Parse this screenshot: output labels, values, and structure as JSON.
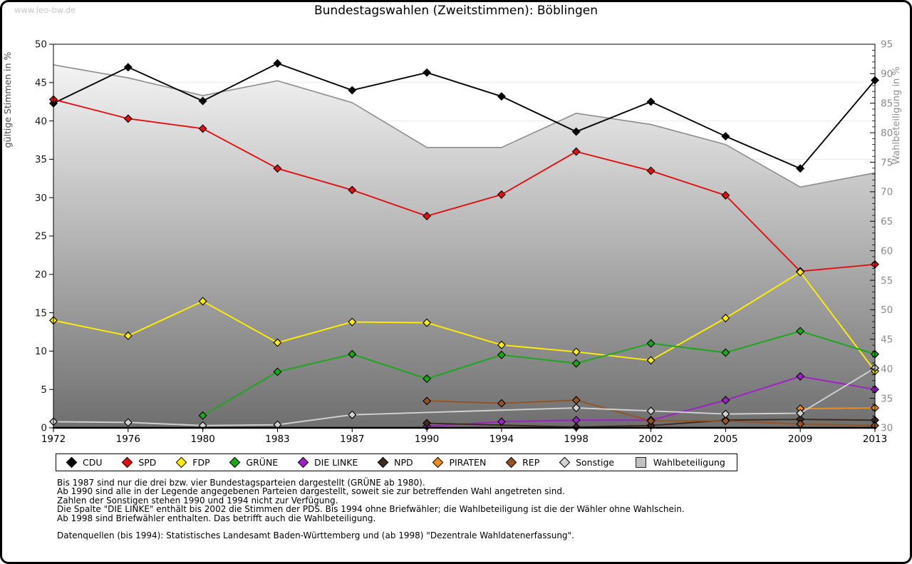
{
  "page": {
    "watermark": "www.leo-bw.de",
    "title": "Bundestagswahlen (Zweitstimmen): Böblingen"
  },
  "footnotes": [
    "Bis 1987 sind nur die drei bzw. vier Bundestagsparteien dargestellt (GRÜNE ab 1980).",
    "Ab 1990 sind alle in der Legende angegebenen Parteien dargestellt, soweit sie zur betreffenden Wahl angetreten sind.",
    "Zahlen der Sonstigen stehen 1990 und 1994 nicht zur Verfügung.",
    "Die Spalte \"DIE LINKE\" enthält bis 2002 die Stimmen der PDS. Bis 1994 ohne Briefwähler; die Wahlbeteiligung ist die der Wähler ohne Wahlschein.",
    "Ab 1998 sind Briefwähler enthalten. Das betrifft auch die Wahlbeteiligung.",
    "",
    "Datenquellen (bis 1994): Statistisches Landesamt Baden-Württemberg und (ab 1998) \"Dezentrale Wahldatenerfassung\"."
  ],
  "chart_data": {
    "type": "line",
    "title": "Bundestagswahlen (Zweitstimmen): Böblingen",
    "categories": [
      "1972",
      "1976",
      "1980",
      "1983",
      "1987",
      "1990",
      "1994",
      "1998",
      "2002",
      "2005",
      "2009",
      "2013"
    ],
    "left_axis": {
      "label": "gültige Stimmen in %",
      "min": 0,
      "max": 50,
      "step": 5
    },
    "right_axis": {
      "label": "Wahlbeteiligung in %",
      "min": 30,
      "max": 95,
      "step": 5,
      "minor_step": 1
    },
    "grid": true,
    "legend_position": "bottom",
    "series": [
      {
        "id": "cdu",
        "name": "CDU",
        "type": "line",
        "axis": "left",
        "color": "#000000",
        "values": [
          42.3,
          47.0,
          42.6,
          47.5,
          44.0,
          46.3,
          43.2,
          38.6,
          42.5,
          38.0,
          33.8,
          45.3
        ]
      },
      {
        "id": "spd",
        "name": "SPD",
        "type": "line",
        "axis": "left",
        "color": "#e01010",
        "values": [
          42.8,
          40.3,
          39.0,
          33.8,
          31.0,
          27.6,
          30.4,
          36.0,
          33.5,
          30.3,
          20.4,
          21.3
        ]
      },
      {
        "id": "fdp",
        "name": "FDP",
        "type": "line",
        "axis": "left",
        "color": "#ffee00",
        "values": [
          14.0,
          12.0,
          16.5,
          11.1,
          13.8,
          13.7,
          10.8,
          9.9,
          8.8,
          14.3,
          20.3,
          7.4
        ]
      },
      {
        "id": "gruene",
        "name": "GRÜNE",
        "type": "line",
        "axis": "left",
        "color": "#18a818",
        "values": [
          null,
          null,
          1.6,
          7.3,
          9.6,
          6.4,
          9.5,
          8.4,
          11.0,
          9.8,
          12.6,
          9.6
        ]
      },
      {
        "id": "die-linke",
        "name": "DIE LINKE",
        "type": "line",
        "axis": "left",
        "color": "#a020c8",
        "values": [
          null,
          null,
          null,
          null,
          null,
          0.2,
          0.8,
          1.0,
          1.0,
          3.6,
          6.7,
          5.0
        ]
      },
      {
        "id": "npd",
        "name": "NPD",
        "type": "line",
        "axis": "left",
        "color": "#3d2b1f",
        "values": [
          null,
          null,
          null,
          null,
          null,
          0.6,
          null,
          0.1,
          0.3,
          1.0,
          1.1,
          1.0
        ]
      },
      {
        "id": "piraten",
        "name": "PIRATEN",
        "type": "line",
        "axis": "left",
        "color": "#ef8e1a",
        "values": [
          null,
          null,
          null,
          null,
          null,
          null,
          null,
          null,
          null,
          null,
          2.5,
          2.6
        ]
      },
      {
        "id": "rep",
        "name": "REP",
        "type": "line",
        "axis": "left",
        "color": "#965220",
        "values": [
          null,
          null,
          null,
          null,
          null,
          3.5,
          3.2,
          3.6,
          0.9,
          0.9,
          0.5,
          0.3
        ]
      },
      {
        "id": "sonstige",
        "name": "Sonstige",
        "type": "line",
        "axis": "left",
        "color": "#d2d2d2",
        "values": [
          0.8,
          0.7,
          0.3,
          0.4,
          1.7,
          null,
          null,
          2.6,
          2.2,
          1.8,
          1.9,
          7.8
        ]
      },
      {
        "id": "wahlbeteiligung",
        "name": "Wahlbeteiligung",
        "type": "area",
        "axis": "right",
        "color": "#8d8d8d",
        "legend_color": "#c2c2c2",
        "fill_top": "#fbfbfb",
        "fill_bottom": "#6f6f6f",
        "values": [
          91.5,
          89.3,
          86.3,
          88.8,
          85.1,
          77.5,
          77.5,
          83.3,
          81.4,
          78.0,
          70.8,
          73.2
        ]
      }
    ]
  }
}
